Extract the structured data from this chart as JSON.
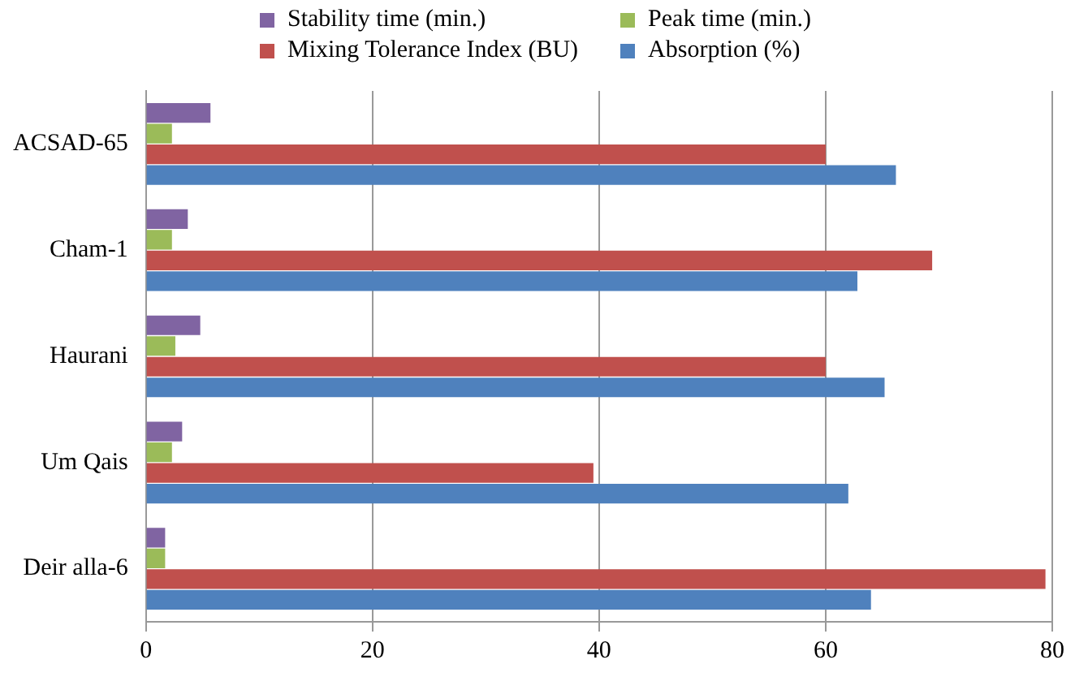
{
  "chart_data": {
    "type": "bar",
    "orientation": "horizontal",
    "categories": [
      "ACSAD-65",
      "Cham-1",
      "Haurani",
      "Um Qais",
      "Deir alla-6"
    ],
    "series": [
      {
        "name": "Stability time (min.)",
        "color": "#8064a2",
        "values": [
          5.7,
          3.7,
          4.8,
          3.2,
          1.7
        ]
      },
      {
        "name": "Peak time (min.)",
        "color": "#9bbb59",
        "values": [
          2.3,
          2.3,
          2.6,
          2.3,
          1.7
        ]
      },
      {
        "name": "Mixing Tolerance Index (BU)",
        "color": "#c0504d",
        "values": [
          60,
          69.4,
          60,
          39.5,
          79.4
        ]
      },
      {
        "name": "Absorption (%)",
        "color": "#4f81bd",
        "values": [
          66.2,
          62.8,
          65.2,
          62,
          64
        ]
      }
    ],
    "xlim": [
      0,
      80
    ],
    "xticks": [
      0,
      20,
      40,
      60,
      80
    ],
    "grid": "x",
    "legend": "top"
  }
}
